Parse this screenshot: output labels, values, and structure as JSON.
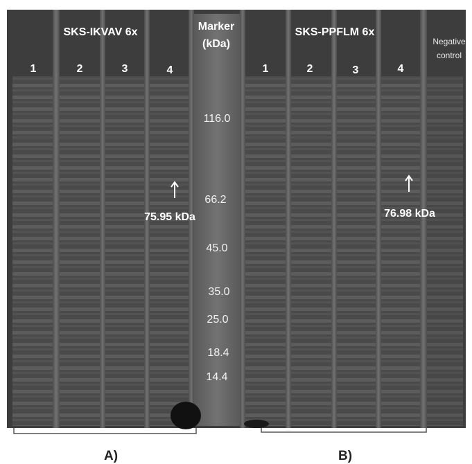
{
  "gel": {
    "groups": [
      {
        "title": "SKS-IKVAV 6x",
        "lanes": [
          "1",
          "2",
          "3",
          "4"
        ],
        "annotation": "75.95 kDa",
        "bracket_label": "A)"
      },
      {
        "title": "SKS-PPFLM 6x",
        "lanes": [
          "1",
          "2",
          "3",
          "4"
        ],
        "annotation": "76.98 kDa",
        "bracket_label": "B)"
      }
    ],
    "marker": {
      "title": [
        "Marker",
        "(kDa)"
      ],
      "values": [
        "116.0",
        "66.2",
        "45.0",
        "35.0",
        "25.0",
        "18.4",
        "14.4"
      ]
    },
    "negative_control": [
      "Negative",
      "control"
    ]
  }
}
